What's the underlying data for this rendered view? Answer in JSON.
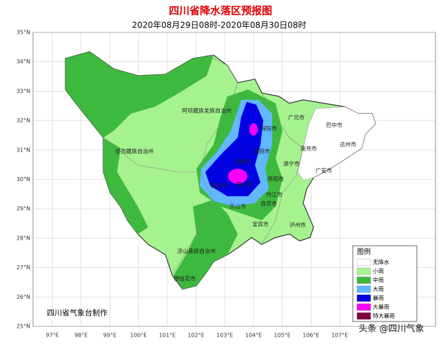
{
  "header": {
    "title": "四川省降水落区预报图",
    "subtitle": "2020年08月29日08时-2020年08月30日08时"
  },
  "map": {
    "lat_labels": [
      "35°N",
      "34°N",
      "33°N",
      "32°N",
      "31°N",
      "30°N",
      "29°N",
      "28°N",
      "27°N",
      "26°N",
      "25°N"
    ],
    "lon_labels": [
      "97°E",
      "98°E",
      "99°E",
      "100°E",
      "101°E",
      "102°E",
      "103°E",
      "104°E",
      "105°E",
      "106°E",
      "107°E"
    ],
    "places": [
      "阿坝藏族羌族自治州",
      "甘孜藏族自治州",
      "凉山彝族自治州",
      "攀枝花市",
      "广元市",
      "巴中市",
      "绵阳市",
      "达州市",
      "南充市",
      "德阳市",
      "遂宁市",
      "成都市",
      "广安市",
      "资阳市",
      "雅安市",
      "眉山市",
      "内江市",
      "乐山市",
      "自贡市",
      "宜宾市",
      "泸州市"
    ]
  },
  "legend": {
    "title": "图例",
    "items": [
      {
        "label": "无降水",
        "color": "#ffffff"
      },
      {
        "label": "小雨",
        "color": "#a6f28f"
      },
      {
        "label": "中雨",
        "color": "#3dba3d"
      },
      {
        "label": "大雨",
        "color": "#61b8ff"
      },
      {
        "label": "暴雨",
        "color": "#0000e1"
      },
      {
        "label": "大暴雨",
        "color": "#fa00fa"
      },
      {
        "label": "特大暴雨",
        "color": "#800040"
      }
    ]
  },
  "credit": "四川省气象台制作",
  "watermark": "头条 @四川气象"
}
